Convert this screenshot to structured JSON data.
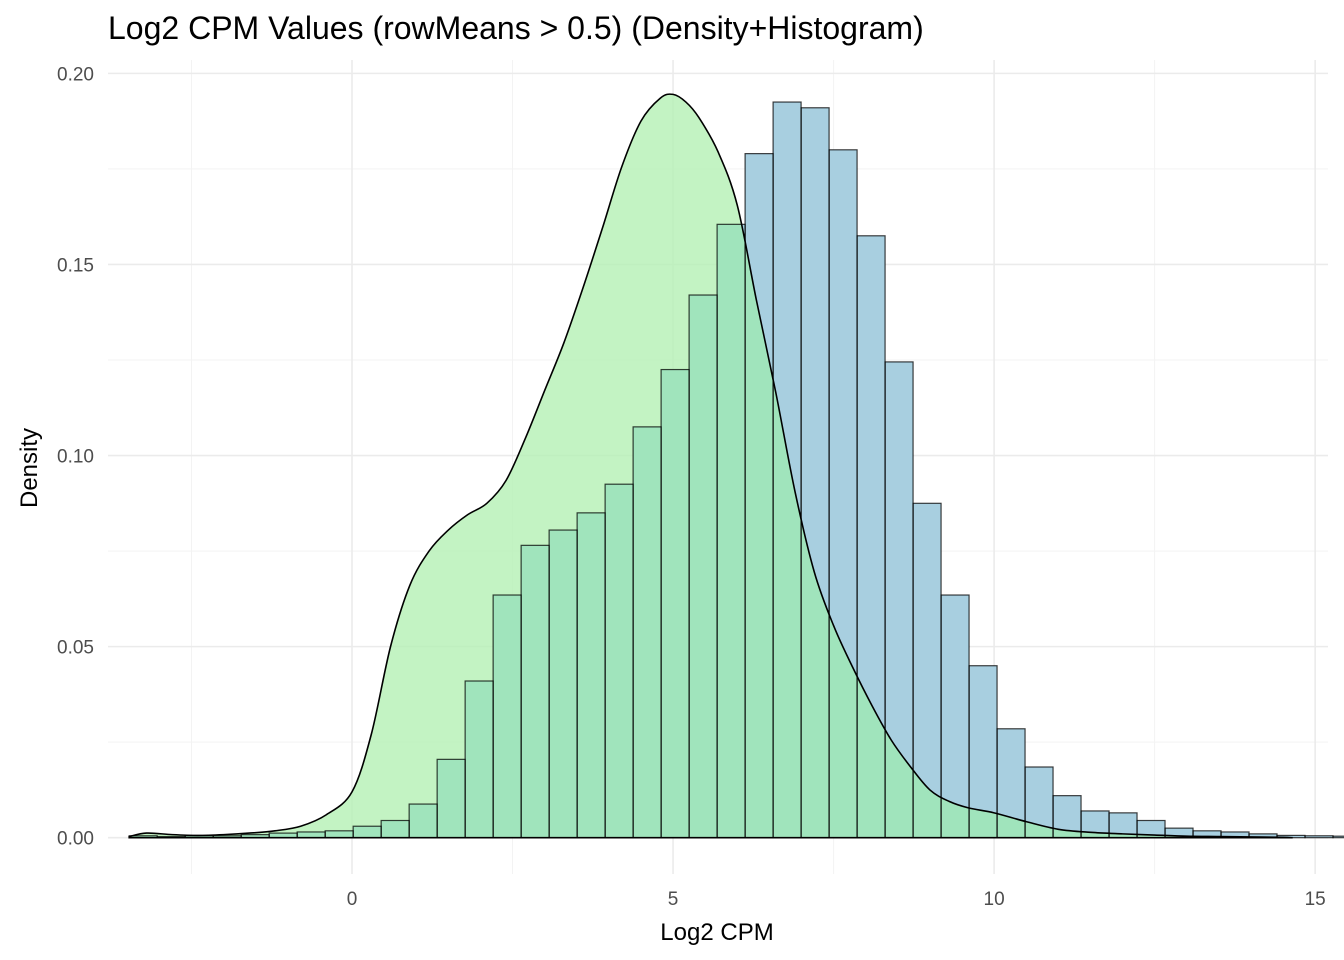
{
  "chart_data": {
    "type": "bar",
    "title": "Log2 CPM Values (rowMeans > 0.5) (Density+Histogram)",
    "xlabel": "Log2 CPM",
    "ylabel": "Density",
    "xlim": [
      -3.8,
      15.2
    ],
    "ylim": [
      -0.0095,
      0.2035
    ],
    "x_ticks": [
      0,
      5,
      10,
      15
    ],
    "x_tick_labels": [
      "0",
      "5",
      "10",
      "15"
    ],
    "y_ticks": [
      0.0,
      0.05,
      0.1,
      0.15,
      0.2
    ],
    "y_tick_labels": [
      "0.00",
      "0.05",
      "0.10",
      "0.15",
      "0.20"
    ],
    "grid": true,
    "legend": "none",
    "bin_width": 0.436,
    "first_bin_start": -3.47,
    "histogram": {
      "name": "histogram",
      "fill": "#a8cfe0",
      "values": [
        0.0005,
        0.0003,
        0.0005,
        0.0005,
        0.0008,
        0.0012,
        0.0015,
        0.0018,
        0.003,
        0.0045,
        0.0088,
        0.0205,
        0.041,
        0.0635,
        0.0765,
        0.0805,
        0.085,
        0.0925,
        0.1075,
        0.1225,
        0.142,
        0.1605,
        0.179,
        0.1925,
        0.191,
        0.18,
        0.1575,
        0.1245,
        0.0875,
        0.0635,
        0.045,
        0.0285,
        0.0185,
        0.011,
        0.007,
        0.0065,
        0.0045,
        0.0025,
        0.0018,
        0.0015,
        0.001,
        0.0006,
        0.0005,
        0.0004,
        0.0003,
        0.0002,
        0.0002,
        0.0001
      ],
      "line_color": "#000000"
    },
    "density": {
      "name": "density",
      "fill": "#b4f0b4",
      "line_color": "#000000",
      "x": [
        -3.47,
        -3.2,
        -2.8,
        -2.4,
        -2.0,
        -1.6,
        -1.2,
        -0.8,
        -0.4,
        0.0,
        0.3,
        0.6,
        0.9,
        1.2,
        1.5,
        1.8,
        2.1,
        2.4,
        2.7,
        3.0,
        3.3,
        3.6,
        3.9,
        4.2,
        4.5,
        4.8,
        5.0,
        5.2,
        5.4,
        5.7,
        6.0,
        6.3,
        6.6,
        6.9,
        7.2,
        7.5,
        7.8,
        8.1,
        8.4,
        8.7,
        9.0,
        9.3,
        9.6,
        10.0,
        10.5,
        11.0,
        11.5,
        12.0,
        12.5,
        13.0,
        13.5,
        14.0,
        14.5,
        14.65
      ],
      "y": [
        0.0003,
        0.0012,
        0.0008,
        0.0006,
        0.0008,
        0.0012,
        0.0018,
        0.003,
        0.006,
        0.012,
        0.027,
        0.05,
        0.066,
        0.075,
        0.0805,
        0.0845,
        0.0875,
        0.0935,
        0.1045,
        0.117,
        0.1295,
        0.144,
        0.1595,
        0.1755,
        0.1875,
        0.1935,
        0.1945,
        0.1925,
        0.1885,
        0.1795,
        0.1655,
        0.1405,
        0.1165,
        0.0905,
        0.0695,
        0.0555,
        0.0445,
        0.0345,
        0.0255,
        0.0185,
        0.0125,
        0.0095,
        0.0078,
        0.0065,
        0.0042,
        0.0022,
        0.0014,
        0.001,
        0.0007,
        0.0004,
        0.0003,
        0.0002,
        0.0001,
        0.0
      ]
    },
    "overlap_fill": "#a0e4bc"
  }
}
